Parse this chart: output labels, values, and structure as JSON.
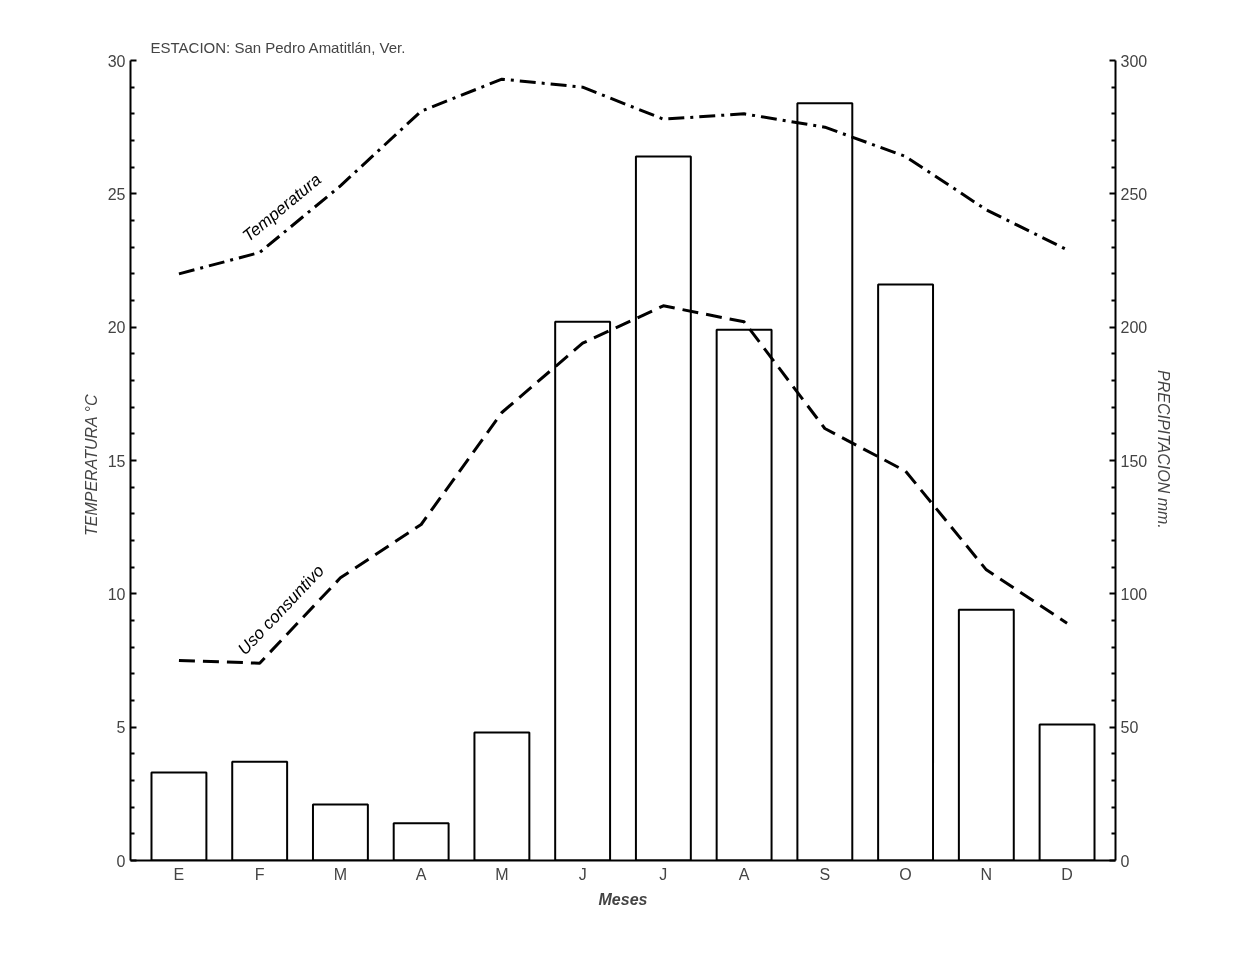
{
  "chart_data": {
    "type": "bar",
    "title": "ESTACION: San Pedro Amatitlán, Ver.",
    "xlabel": "Meses",
    "ylabel": "TEMPERATURA   °C",
    "y2label": "PRECIPITACION      mm.",
    "categories": [
      "E",
      "F",
      "M",
      "A",
      "M",
      "J",
      "J",
      "A",
      "S",
      "O",
      "N",
      "D"
    ],
    "series": [
      {
        "name": null,
        "axis": "y2",
        "color": "#000000",
        "values": [
          33,
          37,
          21,
          14,
          48,
          202,
          264,
          199,
          284,
          216,
          94,
          51
        ]
      },
      {
        "name": "Temperatura",
        "type": "line",
        "line_style": "dashdot",
        "color": "#000000",
        "values": [
          22.0,
          22.8,
          25.3,
          28.1,
          29.3,
          29.0,
          27.8,
          28.0,
          27.5,
          26.4,
          24.4,
          22.9
        ]
      },
      {
        "name": "Uso consuntivo",
        "type": "line",
        "line_style": "dashed",
        "color": "#000000",
        "values": [
          7.5,
          7.4,
          10.6,
          12.6,
          16.8,
          19.4,
          20.8,
          20.2,
          16.2,
          14.6,
          10.9,
          8.9
        ]
      }
    ],
    "ylim": [
      0,
      30
    ],
    "yticks": [
      0,
      5,
      10,
      15,
      20,
      25,
      30
    ],
    "y2lim": [
      0,
      300
    ],
    "y2ticks": [
      0,
      50,
      100,
      150,
      200,
      250,
      300
    ],
    "grid": false
  }
}
